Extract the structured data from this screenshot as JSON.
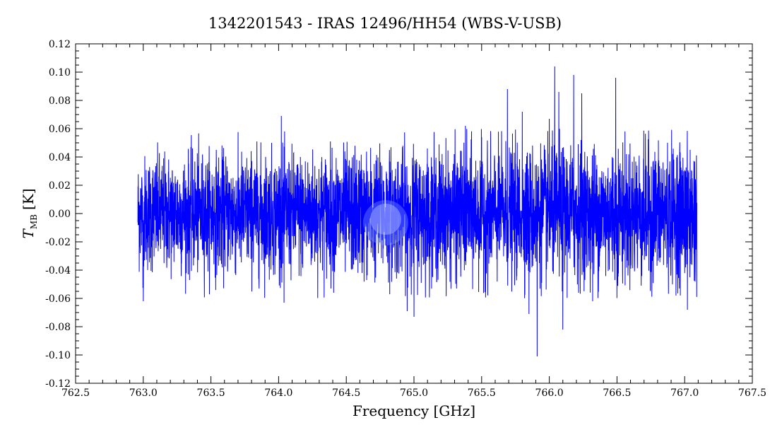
{
  "chart_data": {
    "type": "line",
    "title": "1342201543 - IRAS 12496/HH54 (WBS-V-USB)",
    "xlabel": "Frequency [GHz]",
    "ylabel": "T",
    "ylabel_sub": "MB",
    "ylabel_unit": "[K]",
    "xlim": [
      762.5,
      767.5
    ],
    "ylim": [
      -0.12,
      0.12
    ],
    "x_ticks": [
      "762.5",
      "763.0",
      "763.5",
      "764.0",
      "764.5",
      "765.0",
      "765.5",
      "766.0",
      "766.5",
      "767.0",
      "767.5"
    ],
    "y_ticks": [
      "-0.12",
      "-0.10",
      "-0.08",
      "-0.06",
      "-0.04",
      "-0.02",
      "0.00",
      "0.02",
      "0.04",
      "0.06",
      "0.08",
      "0.10",
      "0.12"
    ],
    "grid": false,
    "legend": "none",
    "series": [
      {
        "color": "#0000ff",
        "x_range": [
          762.96,
          767.09
        ],
        "noise_rms": 0.02,
        "noise_rms_end": 0.024,
        "peaks": [
          {
            "x": 766.04,
            "y": 0.104
          },
          {
            "x": 766.18,
            "y": 0.098
          },
          {
            "x": 765.69,
            "y": 0.088
          },
          {
            "x": 766.07,
            "y": 0.086
          },
          {
            "x": 766.49,
            "y": 0.096
          },
          {
            "x": 766.24,
            "y": 0.085
          },
          {
            "x": 765.91,
            "y": -0.101
          },
          {
            "x": 765.0,
            "y": -0.073
          },
          {
            "x": 764.95,
            "y": -0.069
          },
          {
            "x": 766.1,
            "y": -0.082
          },
          {
            "x": 766.32,
            "y": -0.062
          },
          {
            "x": 767.02,
            "y": -0.068
          },
          {
            "x": 763.0,
            "y": -0.062
          },
          {
            "x": 764.04,
            "y": -0.063
          },
          {
            "x": 765.85,
            "y": -0.071
          },
          {
            "x": 764.02,
            "y": 0.069
          },
          {
            "x": 765.38,
            "y": 0.062
          },
          {
            "x": 766.0,
            "y": 0.067
          },
          {
            "x": 765.8,
            "y": 0.072
          }
        ]
      }
    ]
  }
}
